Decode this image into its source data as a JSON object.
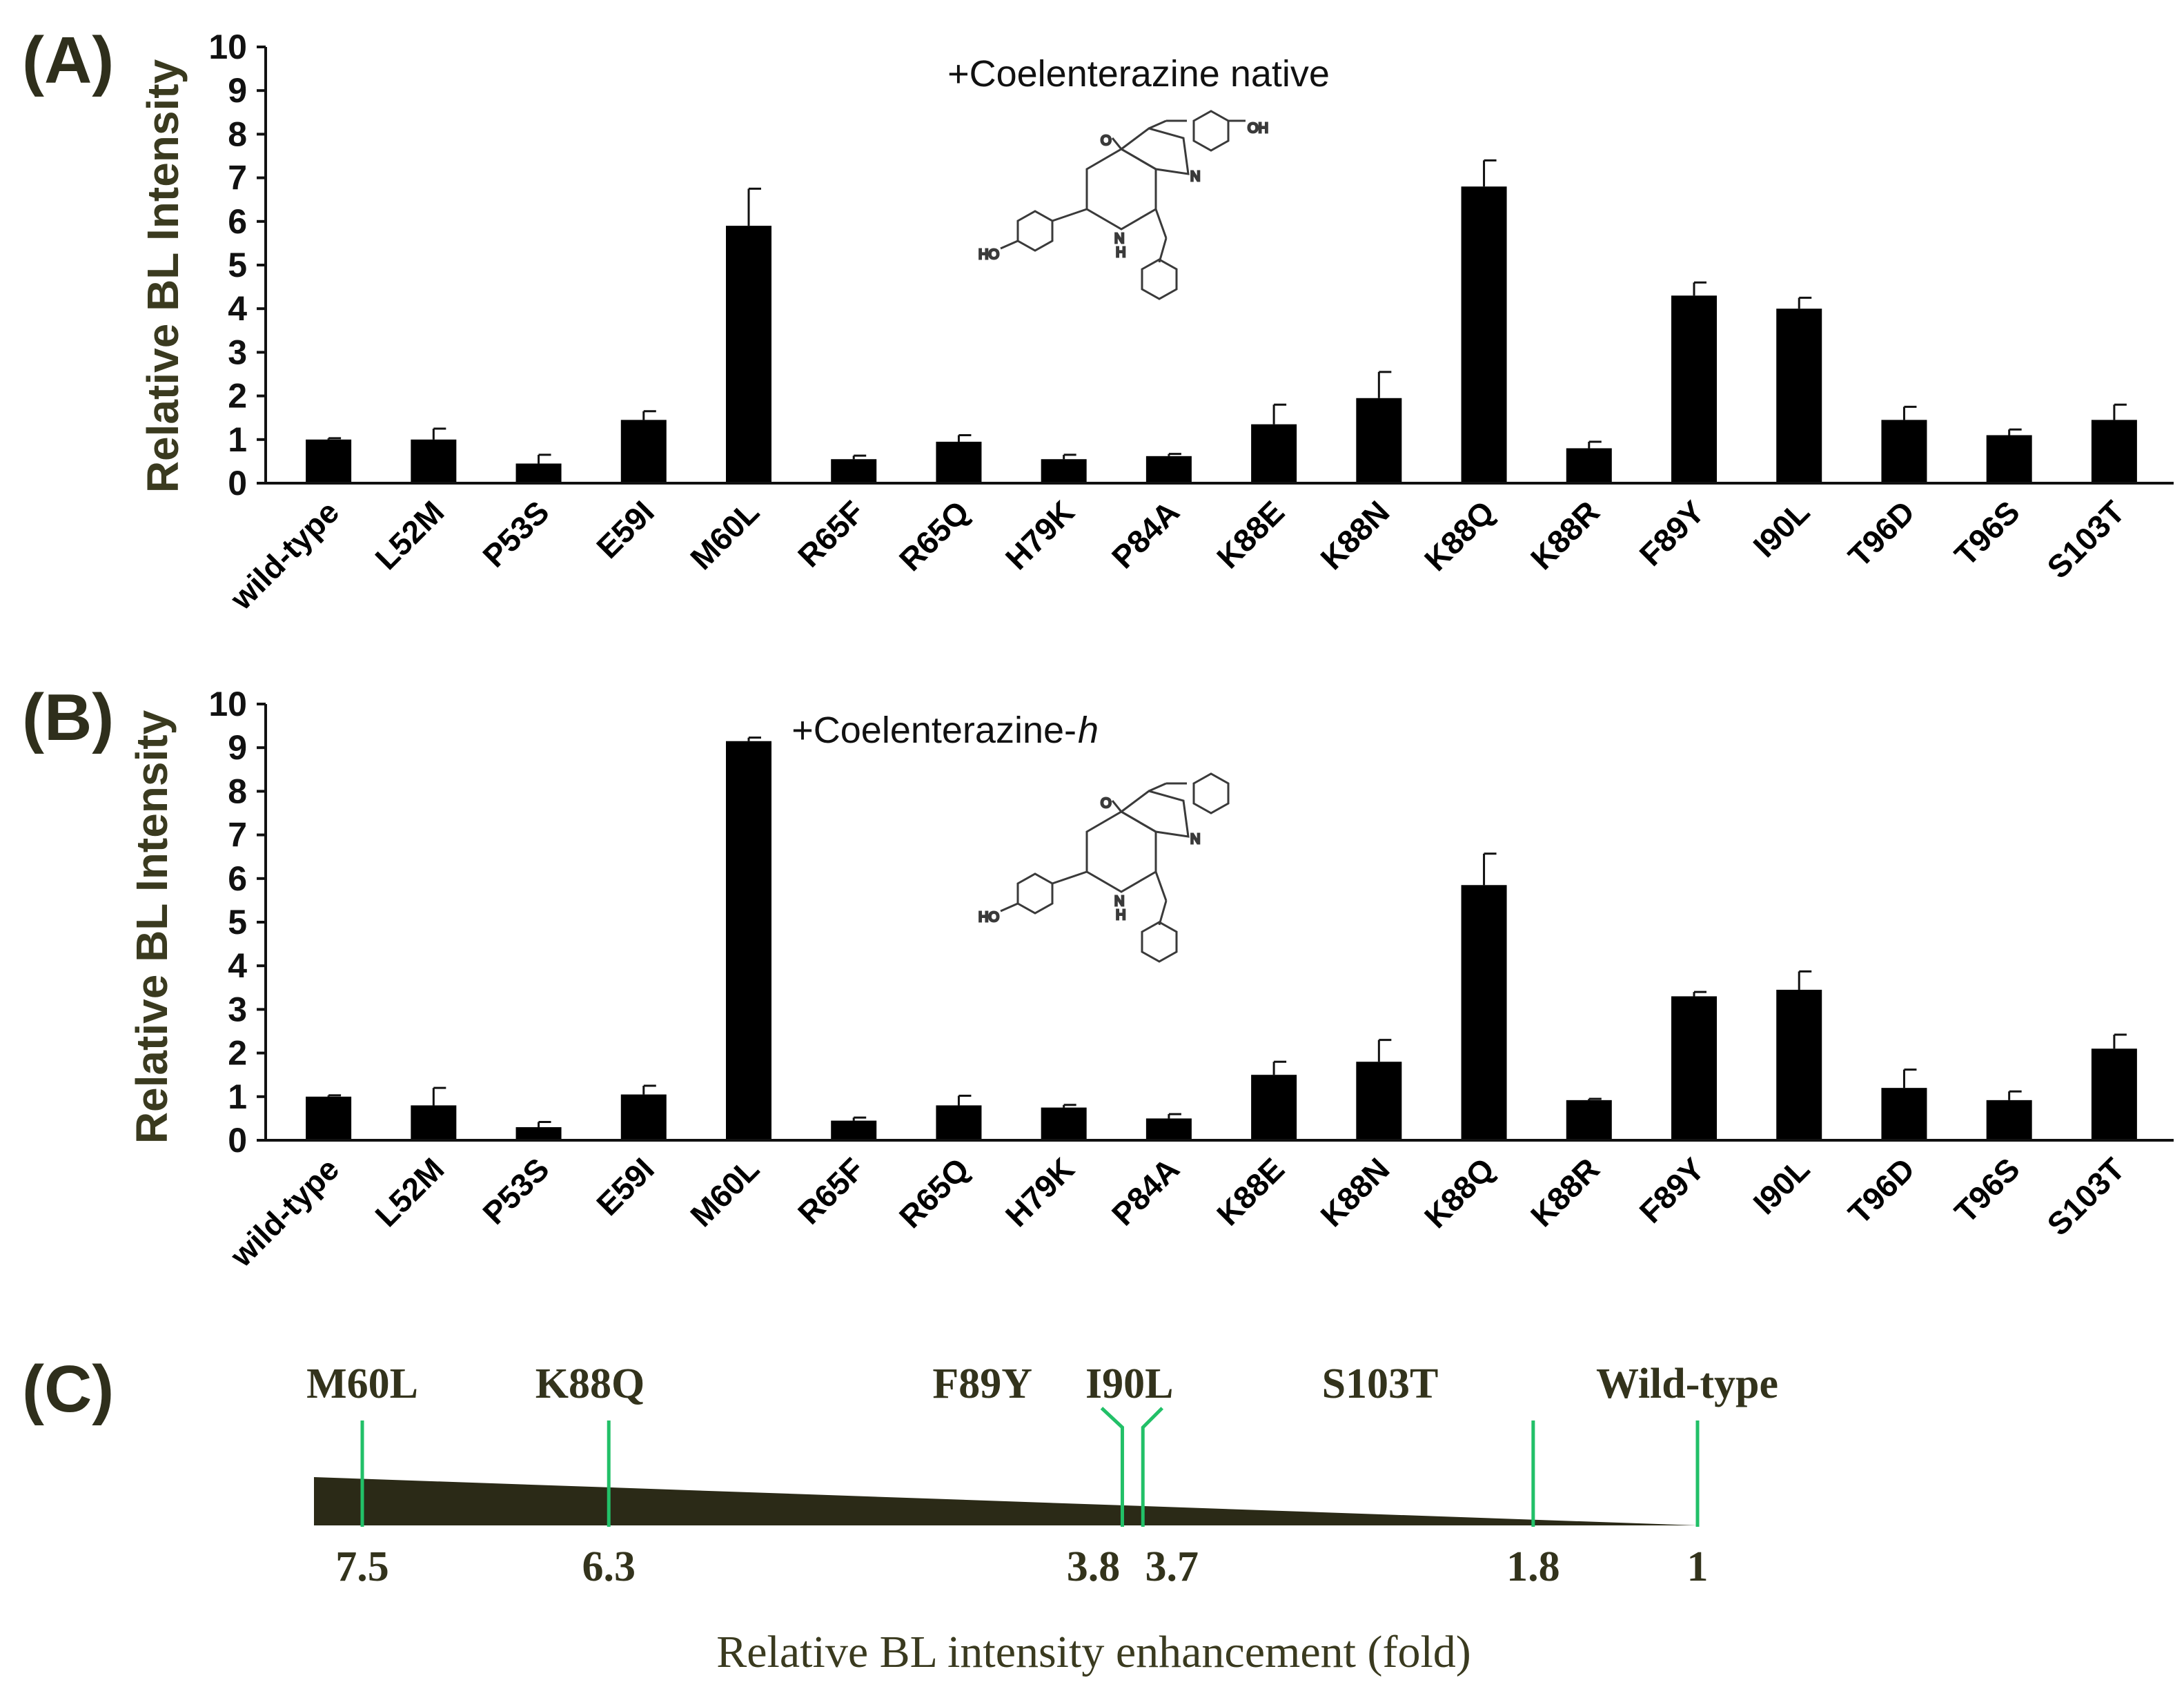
{
  "panels": {
    "a": {
      "label": "(A)"
    },
    "b": {
      "label": "(B)"
    },
    "c": {
      "label": "(C)"
    }
  },
  "chart_data": [
    {
      "type": "bar",
      "panel": "A",
      "title": "+Coelenterazine native",
      "ylabel": "Relative BL Intensity",
      "xlabel": "",
      "ylim": [
        0,
        10
      ],
      "yticks": [
        0,
        1,
        2,
        3,
        4,
        5,
        6,
        7,
        8,
        9,
        10
      ],
      "categories": [
        "wild-type",
        "L52M",
        "P53S",
        "E59I",
        "M60L",
        "R65F",
        "R65Q",
        "H79K",
        "P84A",
        "K88E",
        "K88N",
        "K88Q",
        "K88R",
        "F89Y",
        "I90L",
        "T96D",
        "T96S",
        "S103T"
      ],
      "values": [
        1.0,
        1.0,
        0.45,
        1.45,
        5.9,
        0.55,
        0.95,
        0.55,
        0.62,
        1.35,
        1.95,
        6.8,
        0.8,
        4.3,
        4.0,
        1.45,
        1.1,
        1.45
      ],
      "errors": [
        0.03,
        0.25,
        0.2,
        0.2,
        0.85,
        0.08,
        0.15,
        0.1,
        0.05,
        0.45,
        0.6,
        0.6,
        0.15,
        0.3,
        0.25,
        0.3,
        0.13,
        0.35
      ]
    },
    {
      "type": "bar",
      "panel": "B",
      "title_main": "+Coelenterazine-",
      "title_italic": "h",
      "ylabel": "Relative BL Intensity",
      "xlabel": "",
      "ylim": [
        0,
        10
      ],
      "yticks": [
        0,
        1,
        2,
        3,
        4,
        5,
        6,
        7,
        8,
        9,
        10
      ],
      "categories": [
        "wild-type",
        "L52M",
        "P53S",
        "E59I",
        "M60L",
        "R65F",
        "R65Q",
        "H79K",
        "P84A",
        "K88E",
        "K88N",
        "K88Q",
        "K88R",
        "F89Y",
        "I90L",
        "T96D",
        "T96S",
        "S103T"
      ],
      "values": [
        1.0,
        0.8,
        0.3,
        1.05,
        9.15,
        0.45,
        0.8,
        0.75,
        0.5,
        1.5,
        1.8,
        5.85,
        0.92,
        3.3,
        3.45,
        1.2,
        0.92,
        2.1
      ],
      "errors": [
        0.03,
        0.4,
        0.12,
        0.2,
        0.08,
        0.07,
        0.22,
        0.06,
        0.1,
        0.3,
        0.5,
        0.72,
        0.03,
        0.1,
        0.42,
        0.42,
        0.2,
        0.32
      ]
    }
  ],
  "scale": {
    "xlabel": "Relative BL intensity enhancement (fold)",
    "markers": [
      {
        "name": "M60L",
        "fold": "7.5"
      },
      {
        "name": "K88Q",
        "fold": "6.3"
      },
      {
        "name": "F89Y",
        "fold": "3.8"
      },
      {
        "name": "I90L",
        "fold": "3.7"
      },
      {
        "name": "S103T",
        "fold": "1.8"
      },
      {
        "name": "Wild-type",
        "fold": "1"
      }
    ],
    "colors": {
      "wedge": "#2b2a17",
      "marker": "#22c068"
    }
  },
  "molecule_labels": {
    "carbonyl": "O",
    "nitrogen": "N",
    "amine_n": "N",
    "amine_h": "H",
    "hydroxyl": "OH",
    "hydroxyl_left": "HO"
  }
}
